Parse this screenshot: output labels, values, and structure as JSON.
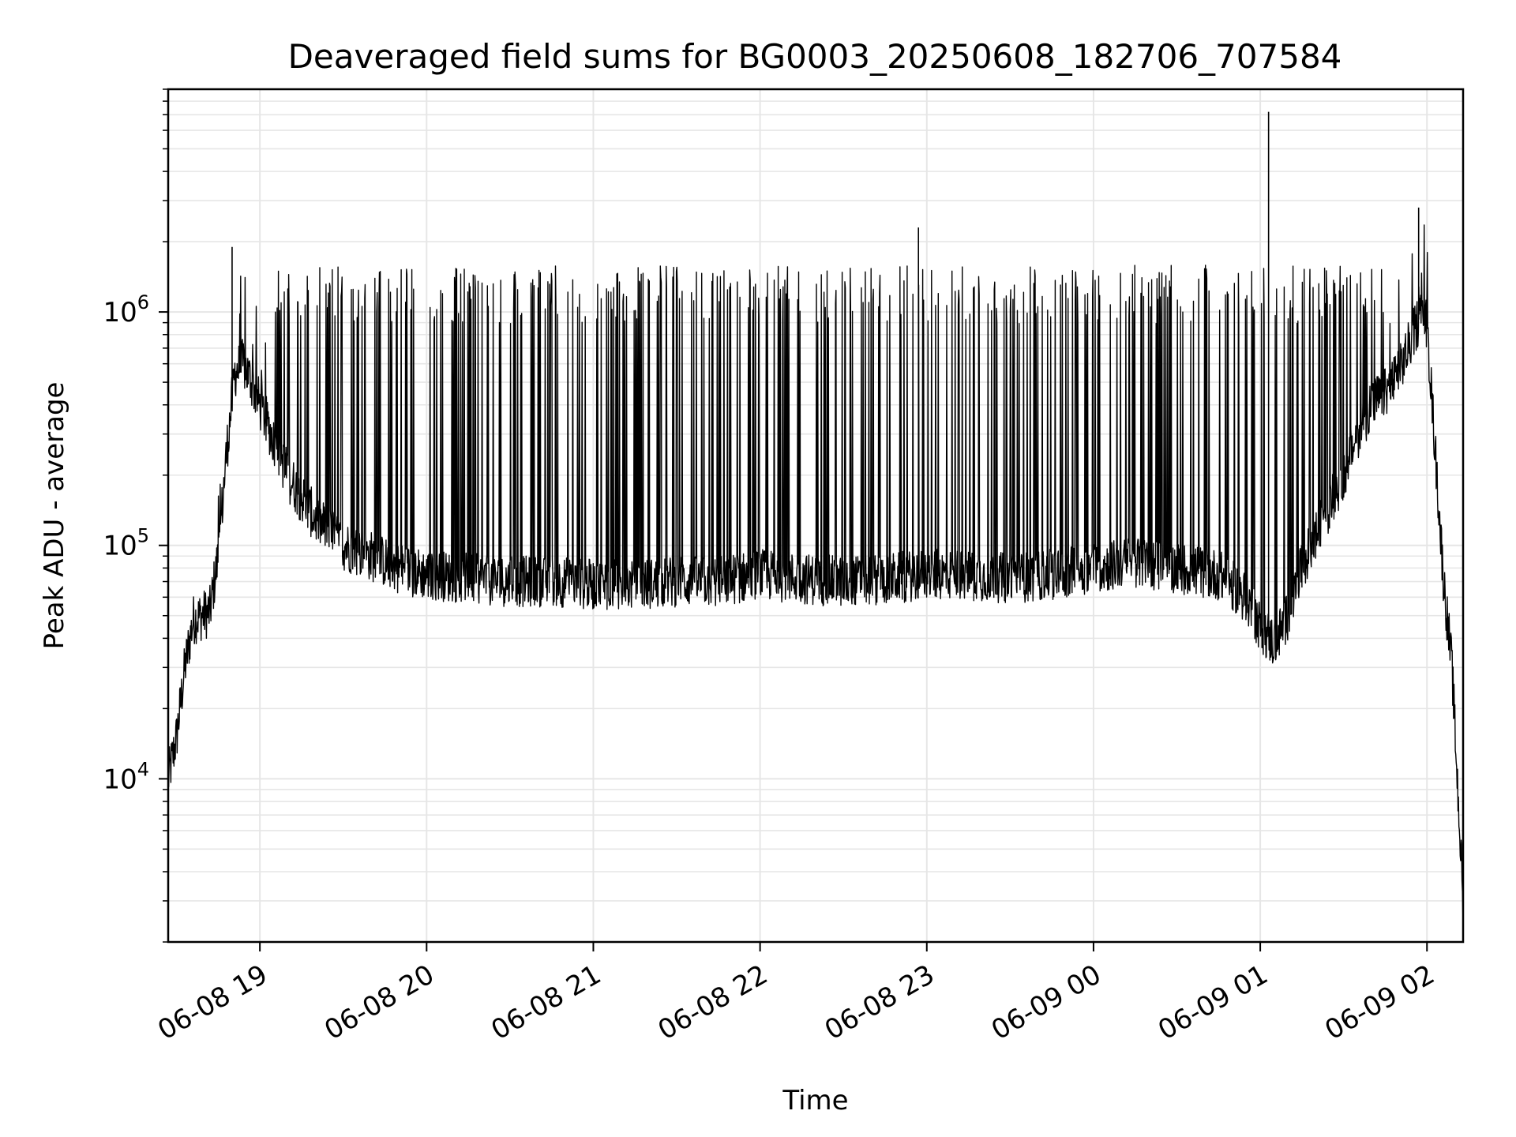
{
  "chart_data": {
    "type": "line",
    "title": "Deaveraged field sums for BG0003_20250608_182706_707584",
    "xlabel": "Time",
    "ylabel": "Peak ADU - average",
    "y_scale": "log",
    "x_range": [
      "06-08 18:27",
      "06-09 02:13"
    ],
    "y_range": [
      2000,
      9000000
    ],
    "x_ticks": [
      "06-08 19",
      "06-08 20",
      "06-08 21",
      "06-08 22",
      "06-08 23",
      "06-09 00",
      "06-09 01",
      "06-09 02"
    ],
    "y_ticks": [
      {
        "base": "10",
        "exp": "4",
        "value": 10000
      },
      {
        "base": "10",
        "exp": "5",
        "value": 100000
      },
      {
        "base": "10",
        "exp": "6",
        "value": 1000000
      }
    ],
    "grid": true,
    "line_color": "#000000",
    "series": [
      {
        "x": [
          "06-08 18:27",
          "06-08 18:30",
          "06-08 18:33",
          "06-08 18:36",
          "06-08 18:39",
          "06-08 18:42",
          "06-08 18:45",
          "06-08 18:48",
          "06-08 18:51",
          "06-08 18:54",
          "06-08 18:57",
          "06-08 19:00",
          "06-08 19:05",
          "06-08 19:10",
          "06-08 19:15",
          "06-08 19:20",
          "06-08 19:30",
          "06-08 19:40",
          "06-08 19:50",
          "06-08 20:00",
          "06-08 20:15",
          "06-08 20:30",
          "06-08 20:45",
          "06-08 21:00",
          "06-08 21:15",
          "06-08 21:30",
          "06-08 21:45",
          "06-08 22:00",
          "06-08 22:15",
          "06-08 22:30",
          "06-08 22:45",
          "06-08 23:00",
          "06-08 23:15",
          "06-08 23:30",
          "06-08 23:45",
          "06-09 00:00",
          "06-09 00:15",
          "06-09 00:30",
          "06-09 00:45",
          "06-09 00:55",
          "06-09 01:00",
          "06-09 01:05",
          "06-09 01:10",
          "06-09 01:15",
          "06-09 01:20",
          "06-09 01:25",
          "06-09 01:30",
          "06-09 01:35",
          "06-09 01:40",
          "06-09 01:45",
          "06-09 01:50",
          "06-09 01:55",
          "06-09 01:58",
          "06-09 02:00",
          "06-09 02:03",
          "06-09 02:06",
          "06-09 02:09",
          "06-09 02:13"
        ],
        "y": [
          10000,
          15000,
          30000,
          48000,
          50000,
          52000,
          90000,
          250000,
          550000,
          600000,
          500000,
          400000,
          280000,
          200000,
          160000,
          130000,
          100000,
          90000,
          80000,
          75000,
          72000,
          70000,
          70000,
          68000,
          68000,
          70000,
          70000,
          75000,
          72000,
          70000,
          72000,
          75000,
          75000,
          72000,
          75000,
          80000,
          85000,
          80000,
          75000,
          60000,
          45000,
          38000,
          50000,
          80000,
          110000,
          150000,
          200000,
          300000,
          400000,
          450000,
          550000,
          800000,
          1000000,
          900000,
          250000,
          70000,
          30000,
          3000
        ]
      }
    ],
    "peaks": [
      {
        "x": "06-08 18:50",
        "y": 1900000
      },
      {
        "x": "06-08 22:57",
        "y": 2300000
      },
      {
        "x": "06-09 01:03",
        "y": 7200000
      },
      {
        "x": "06-09 01:57",
        "y": 2800000
      }
    ]
  }
}
